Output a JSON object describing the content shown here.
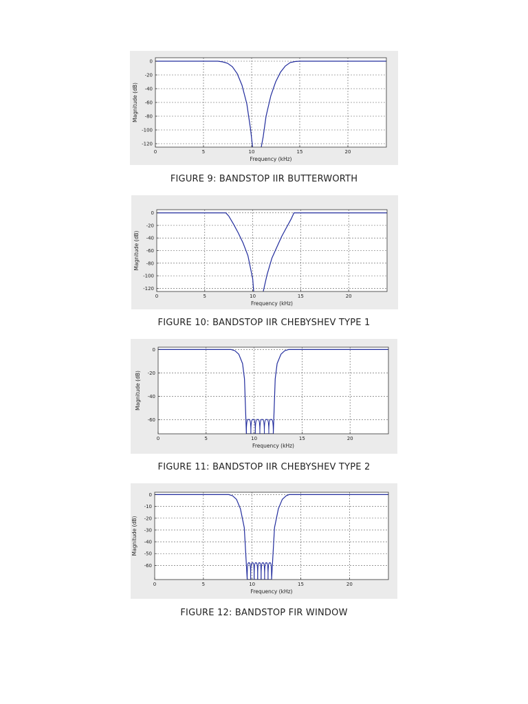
{
  "figures": [
    {
      "caption": "FIGURE 9: BANDSTOP IIR BUTTERWORTH",
      "chart_data": {
        "type": "line",
        "xlabel": "Frequency (kHz)",
        "ylabel": "Magnitude (dB)",
        "xlim": [
          0,
          24
        ],
        "ylim": [
          -125,
          5
        ],
        "xticks": [
          0,
          5,
          10,
          15,
          20
        ],
        "yticks": [
          0,
          -20,
          -40,
          -60,
          -80,
          -100,
          -120
        ],
        "grid": true,
        "series": [
          {
            "color": "#1f2a9c",
            "kind": "bandstop",
            "x": [
              0,
              6.5,
              7.0,
              7.5,
              8.0,
              8.5,
              9.0,
              9.5,
              9.9,
              10.1,
              10.5,
              11.0,
              11.2,
              11.5,
              12.0,
              12.5,
              13.0,
              13.5,
              14.0,
              14.5,
              15.0,
              24
            ],
            "y": [
              0,
              0,
              -1,
              -3,
              -8,
              -18,
              -35,
              -62,
              -100,
              -125,
              null,
              -125,
              -110,
              -80,
              -50,
              -30,
              -16,
              -7,
              -2,
              -0.5,
              0,
              0
            ]
          }
        ]
      }
    },
    {
      "caption": "FIGURE 10: BANDSTOP IIR CHEBYSHEV TYPE 1",
      "chart_data": {
        "type": "line",
        "xlabel": "Frequency (kHz)",
        "ylabel": "Magnitude (dB)",
        "xlim": [
          0,
          24
        ],
        "ylim": [
          -125,
          5
        ],
        "xticks": [
          0,
          5,
          10,
          15,
          20
        ],
        "yticks": [
          0,
          -20,
          -40,
          -60,
          -80,
          -100,
          -120
        ],
        "grid": true,
        "series": [
          {
            "color": "#1f2a9c",
            "kind": "bandstop",
            "x": [
              0,
              7.2,
              7.5,
              8.0,
              8.5,
              9.0,
              9.5,
              10.0,
              10.1,
              11.0,
              11.1,
              11.5,
              12.0,
              12.5,
              13.0,
              13.5,
              14.0,
              14.3,
              24
            ],
            "y": [
              0,
              0,
              -5,
              -18,
              -32,
              -48,
              -68,
              -105,
              -125,
              null,
              -125,
              -98,
              -72,
              -55,
              -38,
              -24,
              -10,
              0,
              0
            ]
          }
        ]
      }
    },
    {
      "caption": "FIGURE 11: BANDSTOP IIR CHEBYSHEV TYPE 2",
      "chart_data": {
        "type": "line",
        "xlabel": "Frequency (kHz)",
        "ylabel": "Magnitude (dB)",
        "xlim": [
          0,
          24
        ],
        "ylim": [
          -72,
          2
        ],
        "xticks": [
          0,
          5,
          10,
          15,
          20
        ],
        "yticks": [
          0,
          -20,
          -40,
          -60
        ],
        "grid": true,
        "series": [
          {
            "color": "#1f2a9c",
            "kind": "bandstop-ripple",
            "x": [
              0,
              7.6,
              8.0,
              8.4,
              8.8,
              9.0,
              9.2,
              12.0,
              12.2,
              12.4,
              12.8,
              13.2,
              13.6,
              24
            ],
            "y": [
              0,
              0,
              -1,
              -4,
              -12,
              -25,
              -72,
              -72,
              -25,
              -12,
              -4,
              -1,
              0,
              0
            ],
            "stopband": {
              "x_from": 9.2,
              "x_to": 12.0,
              "floor": -72,
              "top": -60,
              "lobes": 6
            }
          }
        ]
      }
    },
    {
      "caption": "FIGURE 12: BANDSTOP FIR WINDOW",
      "chart_data": {
        "type": "line",
        "xlabel": "Frequency (kHz)",
        "ylabel": "Magnitude (dB)",
        "xlim": [
          0,
          24
        ],
        "ylim": [
          -72,
          2
        ],
        "xticks": [
          0,
          5,
          10,
          15,
          20
        ],
        "yticks": [
          0,
          -10,
          -20,
          -30,
          -40,
          -50,
          -60
        ],
        "grid": true,
        "series": [
          {
            "color": "#1f2a9c",
            "kind": "bandstop-ripple",
            "x": [
              0,
              7.6,
              8.0,
              8.4,
              8.8,
              9.2,
              9.5,
              12.0,
              12.3,
              12.7,
              13.1,
              13.5,
              13.8,
              24
            ],
            "y": [
              0,
              0,
              -1,
              -4,
              -12,
              -28,
              -72,
              -72,
              -28,
              -12,
              -4,
              -1,
              0,
              0
            ],
            "stopband": {
              "x_from": 9.5,
              "x_to": 12.0,
              "floor": -72,
              "top": -58,
              "lobes": 7
            }
          }
        ]
      }
    }
  ]
}
